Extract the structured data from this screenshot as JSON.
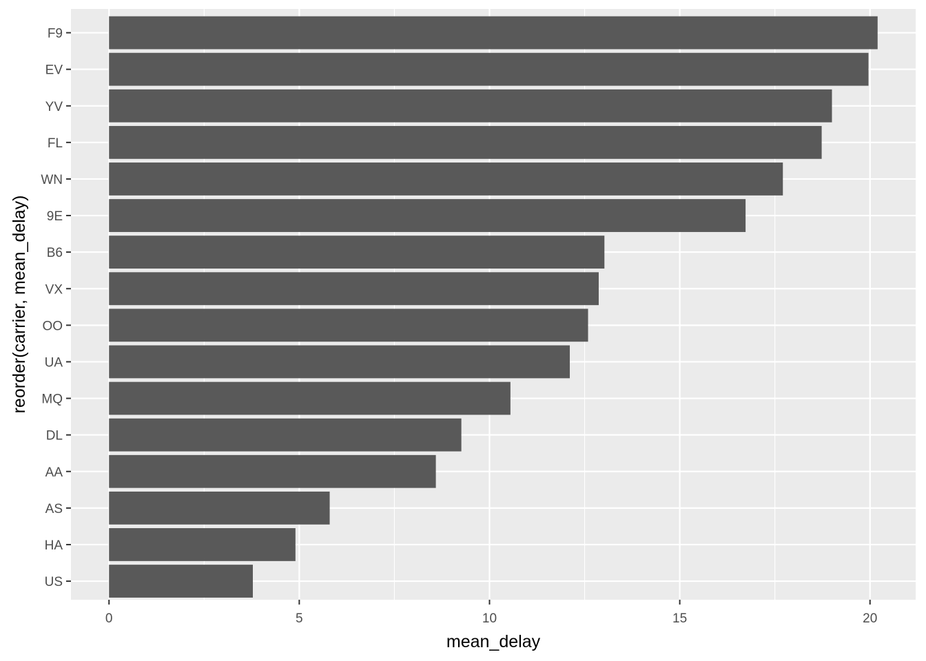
{
  "chart_data": {
    "type": "bar",
    "orientation": "horizontal",
    "categories": [
      "F9",
      "EV",
      "YV",
      "FL",
      "WN",
      "9E",
      "B6",
      "VX",
      "OO",
      "UA",
      "MQ",
      "DL",
      "AA",
      "AS",
      "HA",
      "US"
    ],
    "values": [
      20.2,
      19.96,
      19.0,
      18.73,
      17.71,
      16.73,
      13.02,
      12.87,
      12.59,
      12.11,
      10.55,
      9.26,
      8.59,
      5.8,
      4.9,
      3.78
    ],
    "title": "",
    "xlabel": "mean_delay",
    "ylabel": "reorder(carrier, mean_delay)",
    "xlim": [
      -1.0,
      21.2
    ],
    "xticks": [
      0,
      5,
      10,
      15,
      20
    ],
    "grid": true,
    "legend": "none",
    "colors": {
      "bar": "#595959",
      "panel": "#ebebeb",
      "grid": "#ffffff",
      "tick_text": "#4d4d4d",
      "tick_mark": "#333333",
      "axis_title": "#000000"
    }
  }
}
